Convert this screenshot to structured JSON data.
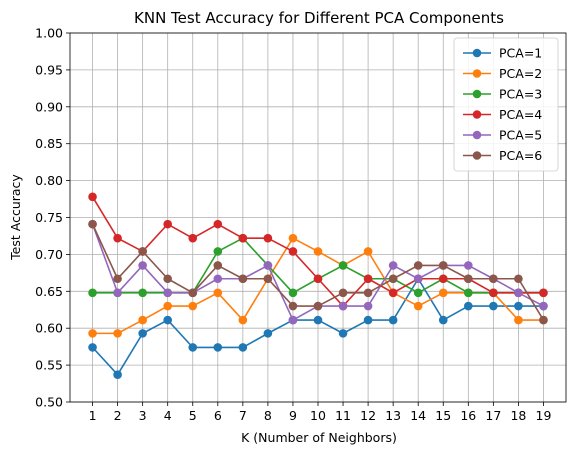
{
  "chart_data": {
    "type": "line",
    "title": "KNN Test Accuracy for Different PCA Components",
    "xlabel": "K (Number of Neighbors)",
    "ylabel": "Test Accuracy",
    "x": [
      1,
      2,
      3,
      4,
      5,
      6,
      7,
      8,
      9,
      10,
      11,
      12,
      13,
      14,
      15,
      16,
      17,
      18,
      19
    ],
    "xlim": [
      0.1,
      19.9
    ],
    "ylim": [
      0.5,
      1.0
    ],
    "yticks": [
      "0.50",
      "0.55",
      "0.60",
      "0.65",
      "0.70",
      "0.75",
      "0.80",
      "0.85",
      "0.90",
      "0.95",
      "1.00"
    ],
    "grid": true,
    "legend_position": "top-right",
    "series": [
      {
        "name": "PCA=1",
        "color": "#1f77b4",
        "values": [
          0.574,
          0.537,
          0.593,
          0.611,
          0.574,
          0.574,
          0.574,
          0.593,
          0.611,
          0.611,
          0.593,
          0.611,
          0.611,
          0.667,
          0.611,
          0.63,
          0.63,
          0.63,
          0.63
        ]
      },
      {
        "name": "PCA=2",
        "color": "#ff7f0e",
        "values": [
          0.593,
          0.593,
          0.611,
          0.63,
          0.63,
          0.648,
          0.611,
          0.667,
          0.722,
          0.704,
          0.685,
          0.704,
          0.648,
          0.63,
          0.648,
          0.648,
          0.648,
          0.611,
          0.611
        ]
      },
      {
        "name": "PCA=3",
        "color": "#2ca02c",
        "values": [
          0.648,
          0.648,
          0.648,
          0.648,
          0.648,
          0.704,
          0.722,
          0.685,
          0.648,
          0.667,
          0.685,
          0.667,
          0.667,
          0.648,
          0.667,
          0.648,
          0.648,
          0.648,
          0.648
        ]
      },
      {
        "name": "PCA=4",
        "color": "#d62728",
        "values": [
          0.778,
          0.722,
          0.704,
          0.741,
          0.722,
          0.741,
          0.722,
          0.722,
          0.704,
          0.667,
          0.63,
          0.667,
          0.648,
          0.667,
          0.667,
          0.667,
          0.648,
          0.648,
          0.648
        ]
      },
      {
        "name": "PCA=5",
        "color": "#9467bd",
        "values": [
          0.741,
          0.648,
          0.685,
          0.648,
          0.648,
          0.667,
          0.667,
          0.685,
          0.611,
          0.63,
          0.63,
          0.63,
          0.685,
          0.667,
          0.685,
          0.685,
          0.667,
          0.648,
          0.63
        ]
      },
      {
        "name": "PCA=6",
        "color": "#8c564b",
        "values": [
          0.741,
          0.667,
          0.704,
          0.667,
          0.648,
          0.685,
          0.667,
          0.667,
          0.63,
          0.63,
          0.648,
          0.648,
          0.667,
          0.685,
          0.685,
          0.667,
          0.667,
          0.667,
          0.611
        ]
      }
    ]
  }
}
